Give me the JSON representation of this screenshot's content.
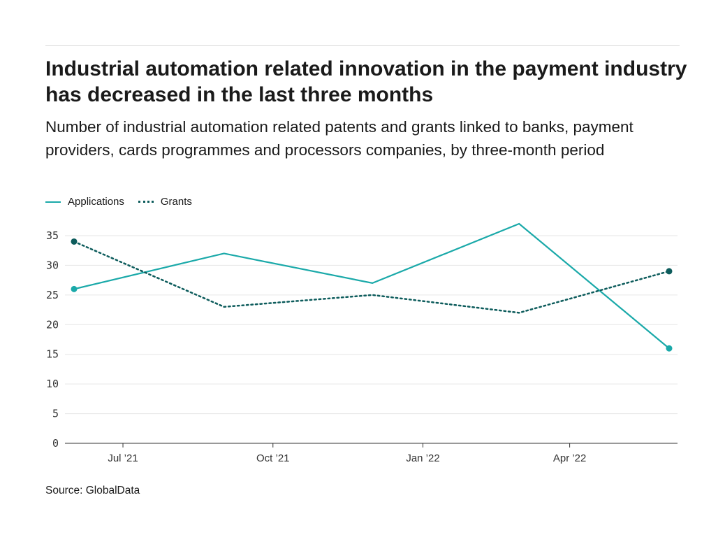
{
  "header": {
    "title": "Industrial automation related innovation in the payment industry has decreased in the last three months",
    "subtitle": "Number of industrial automation related patents and grants linked to banks, payment providers, cards programmes and processors companies, by three-month period"
  },
  "source": "Source: GlobalData",
  "chart_data": {
    "type": "line",
    "title": "Industrial automation related innovation in the payment industry has decreased in the last three months",
    "subtitle": "Number of industrial automation related patents and grants linked to banks, payment providers, cards programmes and processors companies, by three-month period",
    "x": [
      "2021-06",
      "2021-09",
      "2021-12",
      "2022-03",
      "2022-06"
    ],
    "x_ticks": [
      "Jul ’21",
      "Oct ’21",
      "Jan ’22",
      "Apr ’22"
    ],
    "y_ticks": [
      0,
      5,
      10,
      15,
      20,
      25,
      30,
      35
    ],
    "ylim": [
      0,
      35
    ],
    "grid": true,
    "legend": "top-left",
    "series": [
      {
        "name": "Applications",
        "values": [
          26,
          32,
          27,
          37,
          16
        ],
        "color": "#1aa9a9",
        "style": "solid"
      },
      {
        "name": "Grants",
        "values": [
          34,
          23,
          25,
          22,
          29
        ],
        "color": "#0d5c5c",
        "style": "dotted"
      }
    ]
  }
}
